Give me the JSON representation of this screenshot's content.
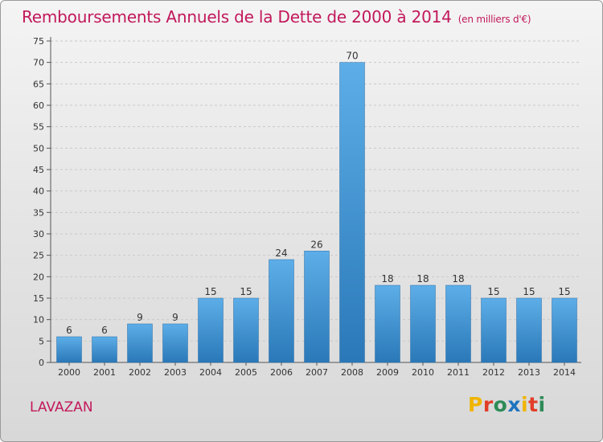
{
  "header": {
    "title": "Remboursements Annuels de la Dette de 2000 à 2014",
    "unit": "(en milliers d'€)"
  },
  "footer": {
    "commune": "LAVAZAN",
    "logo_letters": [
      "P",
      "r",
      "o",
      "x",
      "i",
      "t",
      "i"
    ],
    "logo_colors": [
      "#f0b400",
      "#e23d28",
      "#2e8b57",
      "#1e73be",
      "#f0b400",
      "#e23d28",
      "#2e8b57"
    ]
  },
  "colors": {
    "bar_top": "#5daee8",
    "bar_bottom": "#2a78b8",
    "accent": "#c2185b",
    "grid": "#c9c9c9"
  },
  "chart_data": {
    "type": "bar",
    "title": "Remboursements Annuels de la Dette de 2000 à 2014",
    "ylabel": "(en milliers d'€)",
    "categories": [
      "2000",
      "2001",
      "2002",
      "2003",
      "2004",
      "2005",
      "2006",
      "2007",
      "2008",
      "2009",
      "2010",
      "2011",
      "2012",
      "2013",
      "2014"
    ],
    "values": [
      6,
      6,
      9,
      9,
      15,
      15,
      24,
      26,
      70,
      18,
      18,
      18,
      15,
      15,
      15
    ],
    "ylim": [
      0,
      75
    ],
    "yticks": [
      0,
      5,
      10,
      15,
      20,
      25,
      30,
      35,
      40,
      45,
      50,
      55,
      60,
      65,
      70,
      75
    ],
    "grid": true
  }
}
